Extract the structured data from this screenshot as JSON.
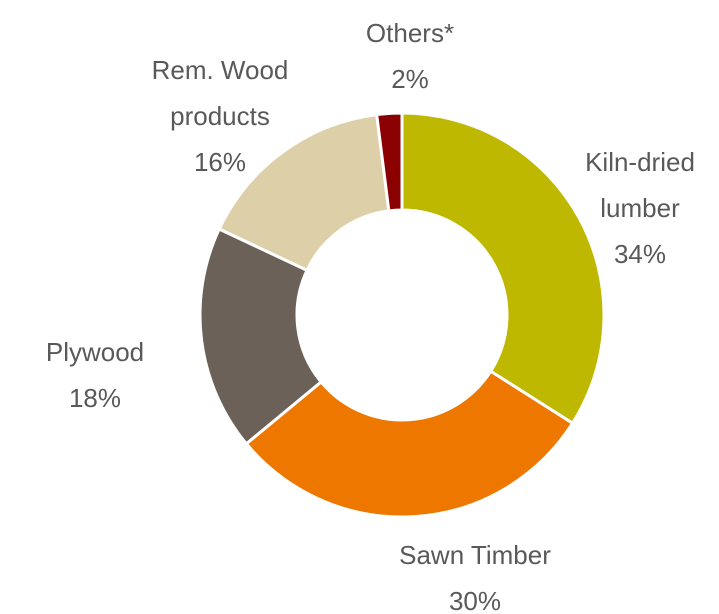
{
  "chart_data": {
    "type": "donut",
    "categories": [
      "Kiln-dried lumber",
      "Sawn Timber",
      "Plywood",
      "Rem. Wood products",
      "Others*"
    ],
    "values": [
      34,
      30,
      18,
      16,
      2
    ],
    "value_labels": [
      "34%",
      "30%",
      "18%",
      "16%",
      "2%"
    ],
    "colors": [
      "#bfb800",
      "#ee7700",
      "#6b6158",
      "#ddd0a8",
      "#8b0000"
    ]
  }
}
